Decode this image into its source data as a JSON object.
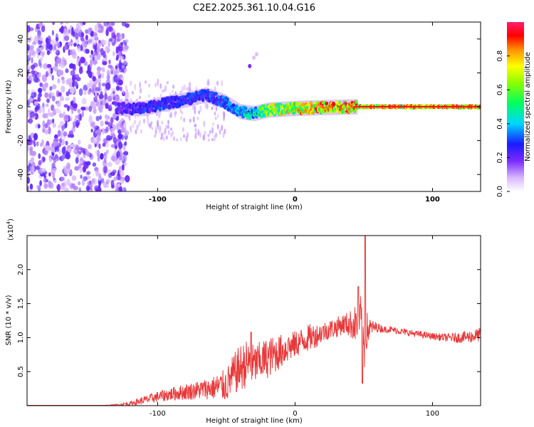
{
  "figure": {
    "title": "C2E2.2025.361.10.04.G16"
  },
  "chart_data": [
    {
      "type": "heatmap",
      "title": "C2E2.2025.361.10.04.G16",
      "xlabel": "Height of straight line (km)",
      "ylabel": "Frequency (Hz)",
      "xlim": [
        -195,
        135
      ],
      "ylim": [
        -50,
        50
      ],
      "xticks": [
        -100,
        0,
        100
      ],
      "xtick_labels": [
        "-100",
        "0",
        "100"
      ],
      "yticks": [
        -40,
        -20,
        0,
        20,
        40
      ],
      "ytick_labels": [
        "-40",
        "-20",
        "0",
        "20",
        "40"
      ],
      "colorbar": {
        "label": "Normalized spectral amplitude",
        "range": [
          0,
          1
        ],
        "ticks": [
          0,
          0.2,
          0.4,
          0.6,
          0.8
        ],
        "tick_labels": [
          "0.0",
          "0.2",
          "0.4",
          "0.6",
          "0.8"
        ],
        "colormap": "white-violet-blue-cyan-green-yellow-red-magenta"
      },
      "features": {
        "noise_region_x": [
          -195,
          -122
        ],
        "ridge": [
          {
            "x": -130,
            "y": -1,
            "amp": 0.25
          },
          {
            "x": -110,
            "y": -1,
            "amp": 0.3
          },
          {
            "x": -100,
            "y": 1,
            "amp": 0.3
          },
          {
            "x": -80,
            "y": 4,
            "amp": 0.3
          },
          {
            "x": -65,
            "y": 7,
            "amp": 0.32
          },
          {
            "x": -52,
            "y": 3,
            "amp": 0.35
          },
          {
            "x": -40,
            "y": -3,
            "amp": 0.4
          },
          {
            "x": -30,
            "y": -4,
            "amp": 0.5
          },
          {
            "x": -20,
            "y": -2,
            "amp": 0.7
          },
          {
            "x": 0,
            "y": -1,
            "amp": 0.8
          },
          {
            "x": 20,
            "y": -0.5,
            "amp": 0.9
          },
          {
            "x": 45,
            "y": 0,
            "amp": 0.9
          },
          {
            "x": 135,
            "y": 0,
            "amp": 0.9
          }
        ]
      }
    },
    {
      "type": "line",
      "xlabel": "Height of straight line (km)",
      "ylabel": "SNR (10 * v/v)",
      "multiplier_label": "(x10",
      "multiplier_exp": "4",
      "multiplier_close": ")",
      "xlim": [
        -195,
        135
      ],
      "ylim": [
        0,
        2.5
      ],
      "xticks": [
        -100,
        0,
        100
      ],
      "xtick_labels": [
        "-100",
        "0",
        "100"
      ],
      "yticks": [
        0.5,
        1.0,
        1.5,
        2.0
      ],
      "ytick_labels": [
        "0.5",
        "1.0",
        "1.5",
        "2.0"
      ],
      "line_color": "#e8393a",
      "series": [
        {
          "name": "SNR",
          "x": [
            -195,
            -180,
            -160,
            -140,
            -130,
            -120,
            -110,
            -100,
            -90,
            -80,
            -70,
            -60,
            -50,
            -45,
            -40,
            -35,
            -30,
            -25,
            -20,
            -15,
            -10,
            -5,
            0,
            5,
            10,
            15,
            20,
            25,
            30,
            35,
            40,
            45,
            48,
            50,
            52,
            55,
            60,
            65,
            70,
            80,
            90,
            100,
            110,
            120,
            130,
            135
          ],
          "y": [
            0.0,
            0.0,
            0.0,
            0.0,
            0.01,
            0.03,
            0.08,
            0.13,
            0.17,
            0.2,
            0.23,
            0.26,
            0.3,
            0.45,
            0.55,
            0.62,
            0.6,
            0.65,
            0.7,
            0.75,
            0.8,
            0.85,
            0.9,
            0.95,
            1.0,
            1.03,
            1.08,
            1.12,
            1.15,
            1.2,
            1.2,
            1.2,
            1.25,
            0.9,
            1.1,
            1.15,
            1.15,
            1.12,
            1.12,
            1.08,
            1.05,
            1.02,
            1.0,
            1.0,
            1.02,
            1.05
          ],
          "noise": [
            0,
            0,
            0.003,
            0.005,
            0.01,
            0.03,
            0.06,
            0.08,
            0.1,
            0.12,
            0.14,
            0.17,
            0.25,
            0.3,
            0.35,
            0.35,
            0.3,
            0.3,
            0.3,
            0.28,
            0.25,
            0.22,
            0.2,
            0.2,
            0.2,
            0.18,
            0.15,
            0.15,
            0.15,
            0.15,
            0.2,
            0.3,
            0.4,
            0.5,
            0.3,
            0.12,
            0.07,
            0.05,
            0.05,
            0.05,
            0.05,
            0.05,
            0.06,
            0.08,
            0.1,
            0.1
          ]
        }
      ],
      "spikes": [
        {
          "x": -32,
          "y": 1.08
        },
        {
          "x": -5,
          "y": 0.97
        },
        {
          "x": 46,
          "y": 1.75
        },
        {
          "x": 51,
          "y": 2.5
        },
        {
          "x": 49,
          "y": 0.33
        }
      ]
    }
  ]
}
